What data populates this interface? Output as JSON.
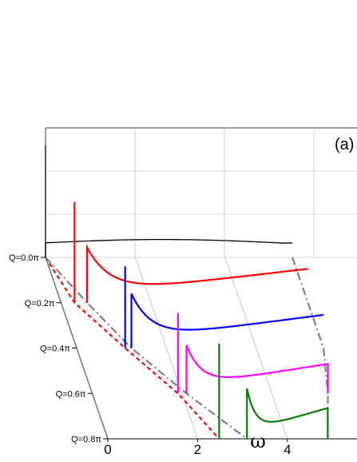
{
  "chart_data": {
    "type": "line",
    "panel_label": "(a)",
    "xlabel": "ω",
    "x_ticks": [
      "0",
      "2",
      "4"
    ],
    "xlim": [
      0,
      5.5
    ],
    "depth_axis_labels": [
      "Q=0.0π",
      "Q=0.2π",
      "Q=0.4π",
      "Q=0.6π",
      "Q=0.8π"
    ],
    "series": [
      {
        "q": 0.0,
        "color": "#000000",
        "delta_omega": 0.0,
        "delta_height": 1.0,
        "continuum": {
          "start": 0.0,
          "end": 5.5,
          "peak": 0.16
        }
      },
      {
        "q": 0.2,
        "color": "#ff0000",
        "delta_omega": 0.3,
        "delta_height": 0.9,
        "continuum": {
          "start": 0.58,
          "end": 5.5,
          "peak": 0.55
        }
      },
      {
        "q": 0.4,
        "color": "#0000ff",
        "delta_omega": 1.08,
        "delta_height": 0.73,
        "continuum": {
          "start": 1.22,
          "end": 5.5,
          "peak": 0.54
        }
      },
      {
        "q": 0.6,
        "color": "#ff00ff",
        "delta_omega": 1.91,
        "delta_height": 0.72,
        "continuum": {
          "start": 2.1,
          "end": 5.25,
          "peak": 0.48
        }
      },
      {
        "q": 0.8,
        "color": "#008000",
        "delta_omega": 2.48,
        "delta_height": 0.85,
        "continuum": {
          "start": 3.1,
          "end": 4.9,
          "peak": 0.5
        }
      }
    ],
    "boundaries": [
      {
        "name": "lower",
        "color": "#ff0000",
        "style": "dashed",
        "omega": [
          0.0,
          0.3,
          1.08,
          1.91,
          2.48
        ]
      },
      {
        "name": "continuum-low",
        "color": "#808080",
        "style": "dash-dot",
        "omega": [
          0.0,
          0.58,
          1.22,
          2.1,
          3.1
        ]
      },
      {
        "name": "continuum-high",
        "color": "#808080",
        "style": "dash-dot",
        "omega": [
          5.5,
          5.5,
          5.5,
          5.25,
          4.9
        ]
      }
    ]
  }
}
